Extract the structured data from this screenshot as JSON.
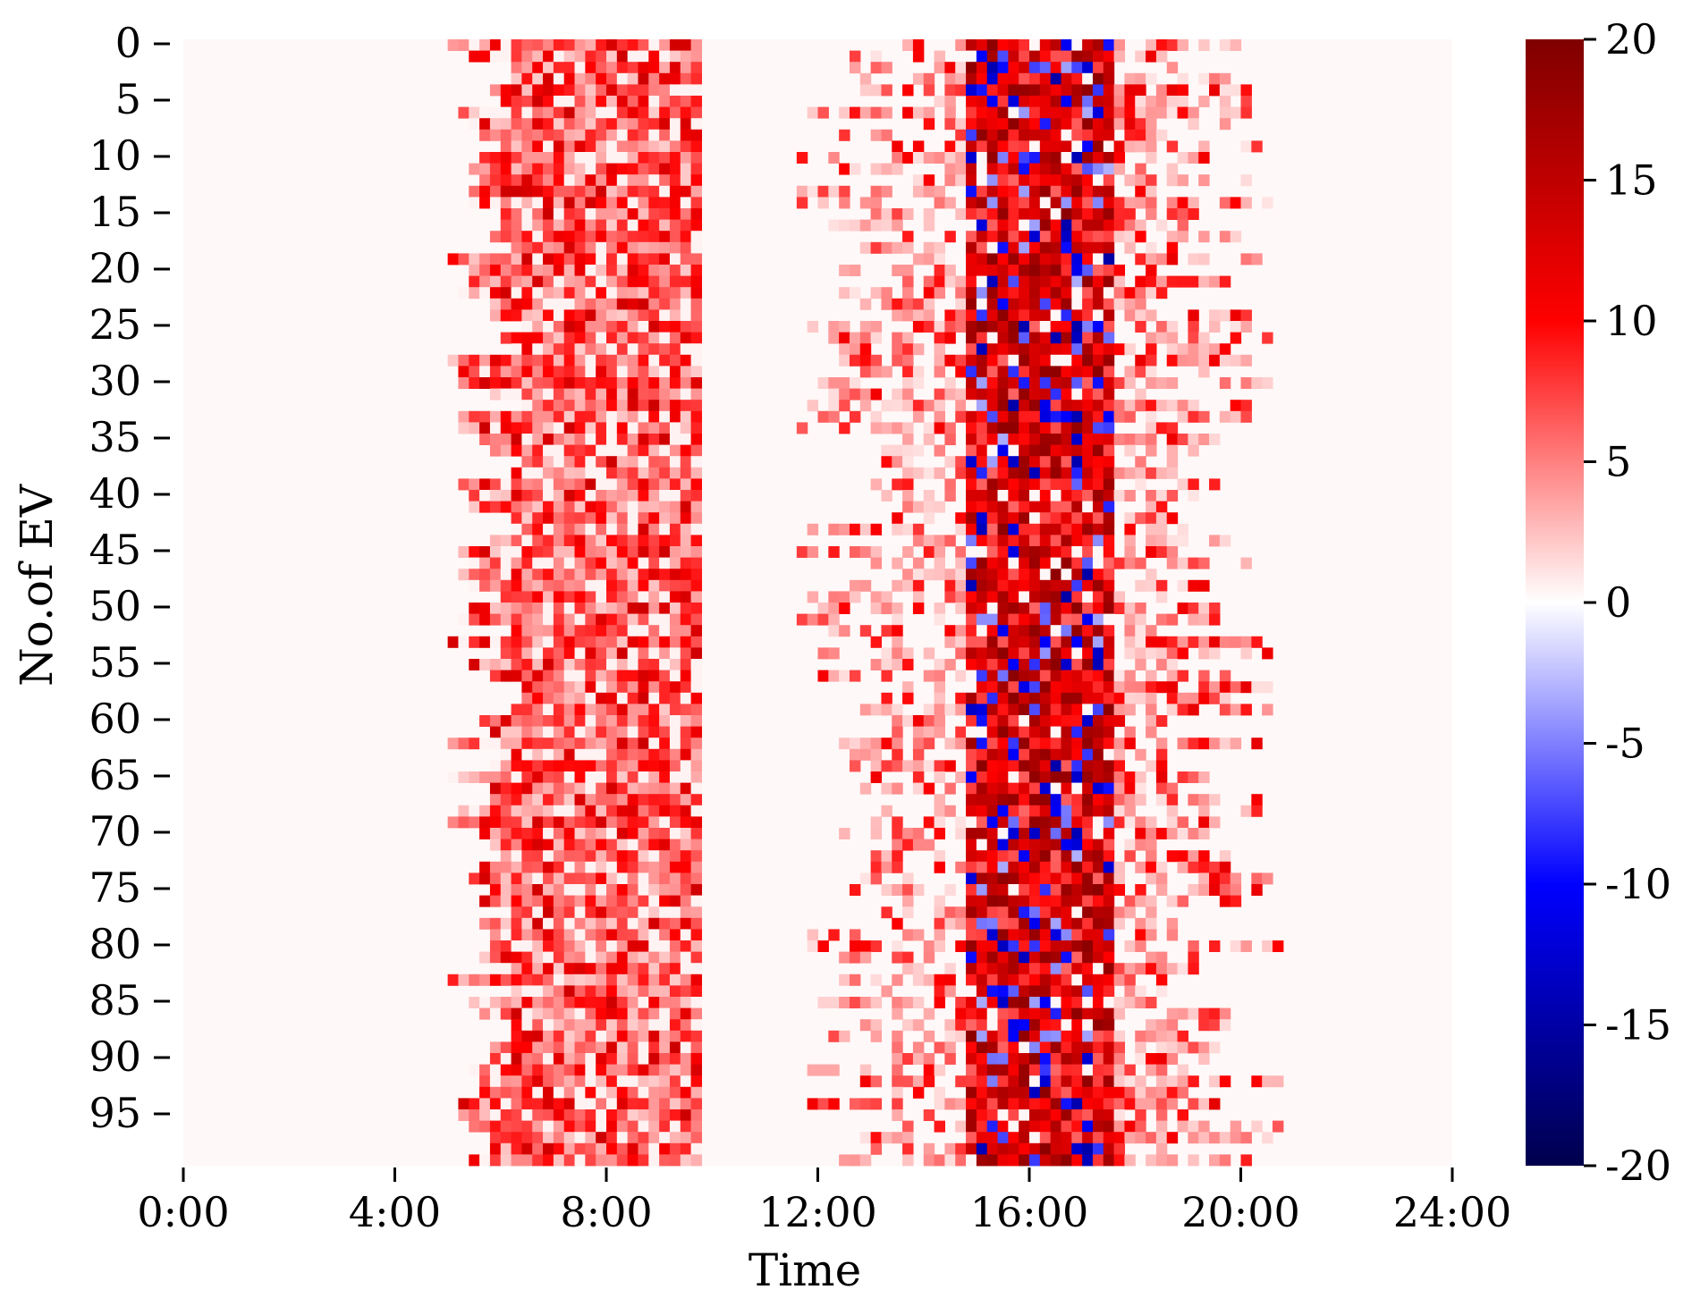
{
  "chart_data": {
    "type": "heatmap",
    "title": "",
    "xlabel": "Time",
    "ylabel": "No.of EV",
    "rows": 100,
    "x_range_hours": [
      0,
      24
    ],
    "x_tick_hours": [
      0,
      4,
      8,
      12,
      16,
      20,
      24
    ],
    "x_tick_labels": [
      "0:00",
      "4:00",
      "8:00",
      "12:00",
      "16:00",
      "20:00",
      "24:00"
    ],
    "y_tick_values": [
      0,
      5,
      10,
      15,
      20,
      25,
      30,
      35,
      40,
      45,
      50,
      55,
      60,
      65,
      70,
      75,
      80,
      85,
      90,
      95
    ],
    "y_tick_labels": [
      "0",
      "5",
      "10",
      "15",
      "20",
      "25",
      "30",
      "35",
      "40",
      "45",
      "50",
      "55",
      "60",
      "65",
      "70",
      "75",
      "80",
      "85",
      "90",
      "95"
    ],
    "colorbar": {
      "min": -20,
      "max": 20,
      "ticks": [
        20,
        15,
        10,
        5,
        0,
        -5,
        -10,
        -15,
        -20
      ],
      "tick_labels": [
        "20",
        "15",
        "10",
        "5",
        "0",
        "-5",
        "-10",
        "-15",
        "-20"
      ],
      "colormap": "seismic",
      "colors": [
        "#00004c",
        "#0000ff",
        "#ffffff",
        "#ff0000",
        "#7f0000"
      ]
    },
    "pattern": {
      "morning_charging_hours": [
        5.0,
        9.8
      ],
      "afternoon_activity_hours": [
        11.5,
        21.0
      ],
      "negative_values_hours": [
        14.8,
        17.6
      ]
    }
  }
}
